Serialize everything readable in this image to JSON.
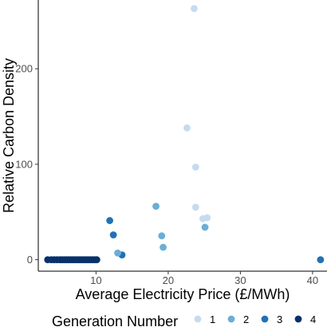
{
  "chart_data": {
    "type": "scatter",
    "xlabel": "Average Electricity Price (£/MWh)",
    "ylabel": "Relative Carbon Density",
    "xlim": [
      2,
      42
    ],
    "ylim": [
      -12,
      272
    ],
    "x_ticks": [
      10,
      20,
      30,
      40
    ],
    "y_ticks": [
      0,
      100,
      200
    ],
    "grid": false,
    "legend": {
      "title": "Generation Number",
      "position": "bottom",
      "entries": [
        {
          "label": "1",
          "color": "#c6dbef"
        },
        {
          "label": "2",
          "color": "#6baed6"
        },
        {
          "label": "3",
          "color": "#2171b5"
        },
        {
          "label": "4",
          "color": "#08306b"
        }
      ]
    },
    "series": [
      {
        "name": "1",
        "color": "#c6dbef",
        "points": [
          {
            "x": 23.6,
            "y": 263
          },
          {
            "x": 22.6,
            "y": 138
          },
          {
            "x": 23.8,
            "y": 97
          },
          {
            "x": 23.8,
            "y": 55
          },
          {
            "x": 24.8,
            "y": 43
          },
          {
            "x": 25.4,
            "y": 44
          }
        ]
      },
      {
        "name": "2",
        "color": "#6baed6",
        "points": [
          {
            "x": 18.3,
            "y": 56
          },
          {
            "x": 19.1,
            "y": 25
          },
          {
            "x": 19.3,
            "y": 13
          },
          {
            "x": 25.1,
            "y": 34
          },
          {
            "x": 13.0,
            "y": 7
          }
        ]
      },
      {
        "name": "3",
        "color": "#2171b5",
        "points": [
          {
            "x": 11.9,
            "y": 41
          },
          {
            "x": 12.4,
            "y": 26
          },
          {
            "x": 13.6,
            "y": 5
          },
          {
            "x": 41.1,
            "y": 0
          }
        ]
      },
      {
        "name": "4",
        "color": "#08306b",
        "points": [
          {
            "x": 3.3,
            "y": 0
          },
          {
            "x": 3.8,
            "y": 0
          },
          {
            "x": 4.2,
            "y": 0
          },
          {
            "x": 4.6,
            "y": 0
          },
          {
            "x": 5.0,
            "y": 0
          },
          {
            "x": 5.3,
            "y": 0
          },
          {
            "x": 5.6,
            "y": 0
          },
          {
            "x": 5.9,
            "y": 0
          },
          {
            "x": 6.2,
            "y": 0
          },
          {
            "x": 6.5,
            "y": 0
          },
          {
            "x": 6.8,
            "y": 0
          },
          {
            "x": 7.1,
            "y": 0
          },
          {
            "x": 7.4,
            "y": 0
          },
          {
            "x": 7.7,
            "y": 0
          },
          {
            "x": 8.0,
            "y": 0
          },
          {
            "x": 8.3,
            "y": 0
          },
          {
            "x": 8.6,
            "y": 0
          },
          {
            "x": 8.9,
            "y": 0
          },
          {
            "x": 9.2,
            "y": 0
          },
          {
            "x": 9.5,
            "y": 0
          },
          {
            "x": 9.8,
            "y": 0
          },
          {
            "x": 10.1,
            "y": 0
          }
        ]
      }
    ]
  }
}
